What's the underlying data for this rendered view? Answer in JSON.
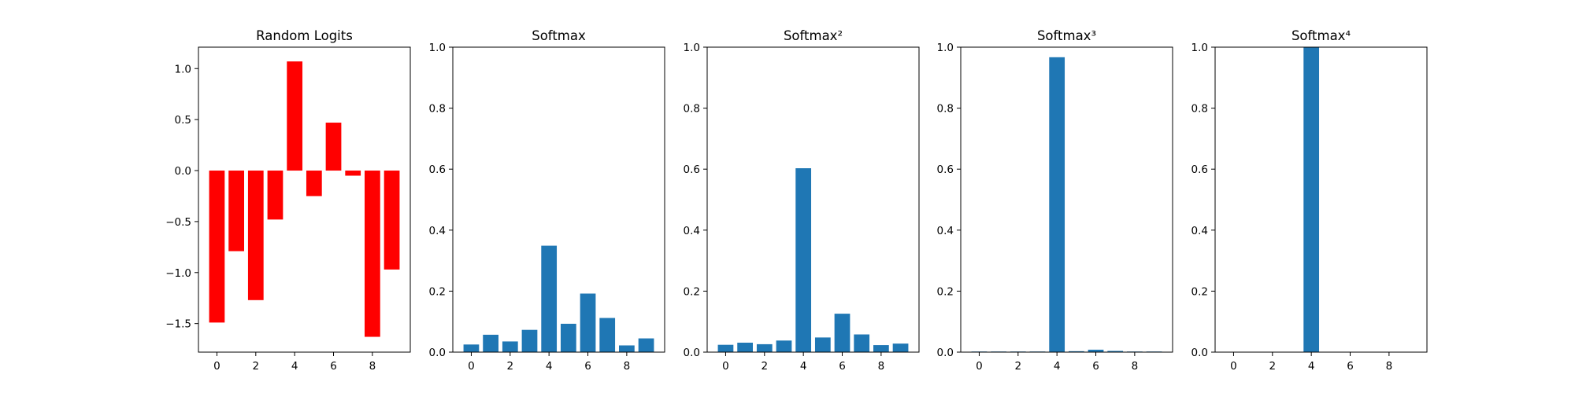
{
  "chart_data": [
    {
      "type": "bar",
      "title": "Random Logits",
      "color": "#ff0000",
      "x": [
        0,
        1,
        2,
        3,
        4,
        5,
        6,
        7,
        8,
        9
      ],
      "values": [
        -1.49,
        -0.79,
        -1.27,
        -0.48,
        1.07,
        -0.25,
        0.47,
        -0.05,
        -1.63,
        -0.97
      ],
      "xlim": [
        -0.95,
        9.95
      ],
      "ylim": [
        -1.78,
        1.21
      ],
      "xticks": [
        0,
        2,
        4,
        6,
        8
      ],
      "yticks": [
        -1.5,
        -1.0,
        -0.5,
        0.0,
        0.5,
        1.0
      ],
      "xtick_labels": [
        "0",
        "2",
        "4",
        "6",
        "8"
      ],
      "ytick_labels": [
        "−1.5",
        "−1.0",
        "−0.5",
        "0.0",
        "0.5",
        "1.0"
      ],
      "xlabel": "",
      "ylabel": "",
      "grid": false
    },
    {
      "type": "bar",
      "title": "Softmax",
      "color": "#1f77b4",
      "x": [
        0,
        1,
        2,
        3,
        4,
        5,
        6,
        7,
        8,
        9
      ],
      "values": [
        0.025,
        0.057,
        0.035,
        0.073,
        0.349,
        0.093,
        0.192,
        0.112,
        0.022,
        0.045
      ],
      "xlim": [
        -0.95,
        9.95
      ],
      "ylim": [
        0,
        1
      ],
      "xticks": [
        0,
        2,
        4,
        6,
        8
      ],
      "yticks": [
        0,
        0.2,
        0.4,
        0.6,
        0.8,
        1.0
      ],
      "xtick_labels": [
        "0",
        "2",
        "4",
        "6",
        "8"
      ],
      "ytick_labels": [
        "0.0",
        "0.2",
        "0.4",
        "0.6",
        "0.8",
        "1.0"
      ],
      "xlabel": "",
      "ylabel": "",
      "grid": false
    },
    {
      "type": "bar",
      "title": "Softmax²",
      "color": "#1f77b4",
      "x": [
        0,
        1,
        2,
        3,
        4,
        5,
        6,
        7,
        8,
        9
      ],
      "values": [
        0.024,
        0.031,
        0.026,
        0.038,
        0.603,
        0.048,
        0.126,
        0.058,
        0.023,
        0.028
      ],
      "xlim": [
        -0.95,
        9.95
      ],
      "ylim": [
        0,
        1
      ],
      "xticks": [
        0,
        2,
        4,
        6,
        8
      ],
      "yticks": [
        0,
        0.2,
        0.4,
        0.6,
        0.8,
        1.0
      ],
      "xtick_labels": [
        "0",
        "2",
        "4",
        "6",
        "8"
      ],
      "ytick_labels": [
        "0.0",
        "0.2",
        "0.4",
        "0.6",
        "0.8",
        "1.0"
      ],
      "xlabel": "",
      "ylabel": "",
      "grid": false
    },
    {
      "type": "bar",
      "title": "Softmax³",
      "color": "#1f77b4",
      "x": [
        0,
        1,
        2,
        3,
        4,
        5,
        6,
        7,
        8,
        9
      ],
      "values": [
        0.002,
        0.002,
        0.002,
        0.002,
        0.967,
        0.003,
        0.008,
        0.004,
        0.002,
        0.002
      ],
      "xlim": [
        -0.95,
        9.95
      ],
      "ylim": [
        0,
        1
      ],
      "xticks": [
        0,
        2,
        4,
        6,
        8
      ],
      "yticks": [
        0,
        0.2,
        0.4,
        0.6,
        0.8,
        1.0
      ],
      "xtick_labels": [
        "0",
        "2",
        "4",
        "6",
        "8"
      ],
      "ytick_labels": [
        "0.0",
        "0.2",
        "0.4",
        "0.6",
        "0.8",
        "1.0"
      ],
      "xlabel": "",
      "ylabel": "",
      "grid": false
    },
    {
      "type": "bar",
      "title": "Softmax⁴",
      "color": "#1f77b4",
      "x": [
        0,
        1,
        2,
        3,
        4,
        5,
        6,
        7,
        8,
        9
      ],
      "values": [
        0.0,
        0.0,
        0.0,
        0.0,
        1.0,
        0.0,
        0.0,
        0.0,
        0.0,
        0.0
      ],
      "xlim": [
        -0.95,
        9.95
      ],
      "ylim": [
        0,
        1
      ],
      "xticks": [
        0,
        2,
        4,
        6,
        8
      ],
      "yticks": [
        0,
        0.2,
        0.4,
        0.6,
        0.8,
        1.0
      ],
      "xtick_labels": [
        "0",
        "2",
        "4",
        "6",
        "8"
      ],
      "ytick_labels": [
        "0.0",
        "0.2",
        "0.4",
        "0.6",
        "0.8",
        "1.0"
      ],
      "xlabel": "",
      "ylabel": "",
      "grid": false
    }
  ]
}
